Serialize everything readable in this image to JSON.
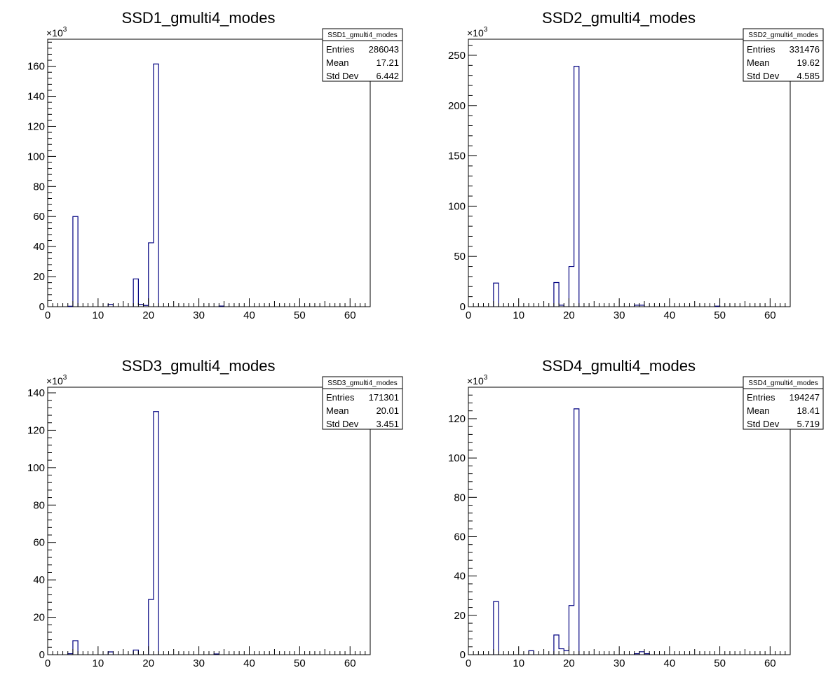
{
  "chart_data": [
    {
      "type": "bar",
      "title": "SSD1_gmulti4_modes",
      "xlim": [
        0,
        64
      ],
      "ylim": [
        0,
        178
      ],
      "y_multiplier": "×10",
      "y_exponent": "3",
      "xticks": [
        0,
        10,
        20,
        30,
        40,
        50,
        60
      ],
      "yticks": [
        0,
        20,
        40,
        60,
        80,
        100,
        120,
        140,
        160
      ],
      "line_color": "#000080",
      "stats": {
        "title": "SSD1_gmulti4_modes",
        "rows": [
          [
            "Entries",
            "286043"
          ],
          [
            "Mean",
            "17.21"
          ],
          [
            "Std Dev",
            "6.442"
          ]
        ]
      },
      "bins": [
        {
          "x": 4,
          "value": 0.3
        },
        {
          "x": 5,
          "value": 60
        },
        {
          "x": 12,
          "value": 1.5
        },
        {
          "x": 17,
          "value": 18.5
        },
        {
          "x": 18,
          "value": 1.5
        },
        {
          "x": 19,
          "value": 0.8
        },
        {
          "x": 20,
          "value": 42.5
        },
        {
          "x": 21,
          "value": 161.5
        },
        {
          "x": 34,
          "value": 0.4
        }
      ]
    },
    {
      "type": "bar",
      "title": "SSD2_gmulti4_modes",
      "xlim": [
        0,
        64
      ],
      "ylim": [
        0,
        266
      ],
      "y_multiplier": "×10",
      "y_exponent": "3",
      "xticks": [
        0,
        10,
        20,
        30,
        40,
        50,
        60
      ],
      "yticks": [
        0,
        50,
        100,
        150,
        200,
        250
      ],
      "line_color": "#000080",
      "stats": {
        "title": "SSD2_gmulti4_modes",
        "rows": [
          [
            "Entries",
            "331476"
          ],
          [
            "Mean",
            "19.62"
          ],
          [
            "Std Dev",
            "4.585"
          ]
        ]
      },
      "bins": [
        {
          "x": 5,
          "value": 23.5
        },
        {
          "x": 17,
          "value": 24
        },
        {
          "x": 18,
          "value": 1.5
        },
        {
          "x": 20,
          "value": 40
        },
        {
          "x": 21,
          "value": 239
        },
        {
          "x": 33,
          "value": 1.5
        },
        {
          "x": 34,
          "value": 1.5
        },
        {
          "x": 49,
          "value": 0.5
        }
      ]
    },
    {
      "type": "bar",
      "title": "SSD3_gmulti4_modes",
      "xlim": [
        0,
        64
      ],
      "ylim": [
        0,
        143
      ],
      "y_multiplier": "×10",
      "y_exponent": "3",
      "xticks": [
        0,
        10,
        20,
        30,
        40,
        50,
        60
      ],
      "yticks": [
        0,
        20,
        40,
        60,
        80,
        100,
        120,
        140
      ],
      "line_color": "#000080",
      "stats": {
        "title": "SSD3_gmulti4_modes",
        "rows": [
          [
            "Entries",
            "171301"
          ],
          [
            "Mean",
            "20.01"
          ],
          [
            "Std Dev",
            "3.451"
          ]
        ]
      },
      "bins": [
        {
          "x": 4,
          "value": 0.5
        },
        {
          "x": 5,
          "value": 7.5
        },
        {
          "x": 12,
          "value": 1.5
        },
        {
          "x": 17,
          "value": 2.5
        },
        {
          "x": 20,
          "value": 29.5
        },
        {
          "x": 21,
          "value": 130
        },
        {
          "x": 33,
          "value": 0.4
        }
      ]
    },
    {
      "type": "bar",
      "title": "SSD4_gmulti4_modes",
      "xlim": [
        0,
        64
      ],
      "ylim": [
        0,
        136
      ],
      "y_multiplier": "×10",
      "y_exponent": "3",
      "xticks": [
        0,
        10,
        20,
        30,
        40,
        50,
        60
      ],
      "yticks": [
        0,
        20,
        40,
        60,
        80,
        100,
        120
      ],
      "line_color": "#000080",
      "stats": {
        "title": "SSD4_gmulti4_modes",
        "rows": [
          [
            "Entries",
            "194247"
          ],
          [
            "Mean",
            "18.41"
          ],
          [
            "Std Dev",
            "5.719"
          ]
        ]
      },
      "bins": [
        {
          "x": 5,
          "value": 27
        },
        {
          "x": 12,
          "value": 2
        },
        {
          "x": 17,
          "value": 10
        },
        {
          "x": 18,
          "value": 3
        },
        {
          "x": 19,
          "value": 2
        },
        {
          "x": 20,
          "value": 25
        },
        {
          "x": 21,
          "value": 125
        },
        {
          "x": 33,
          "value": 0.5
        },
        {
          "x": 34,
          "value": 1.5
        },
        {
          "x": 35,
          "value": 0.5
        }
      ]
    }
  ]
}
